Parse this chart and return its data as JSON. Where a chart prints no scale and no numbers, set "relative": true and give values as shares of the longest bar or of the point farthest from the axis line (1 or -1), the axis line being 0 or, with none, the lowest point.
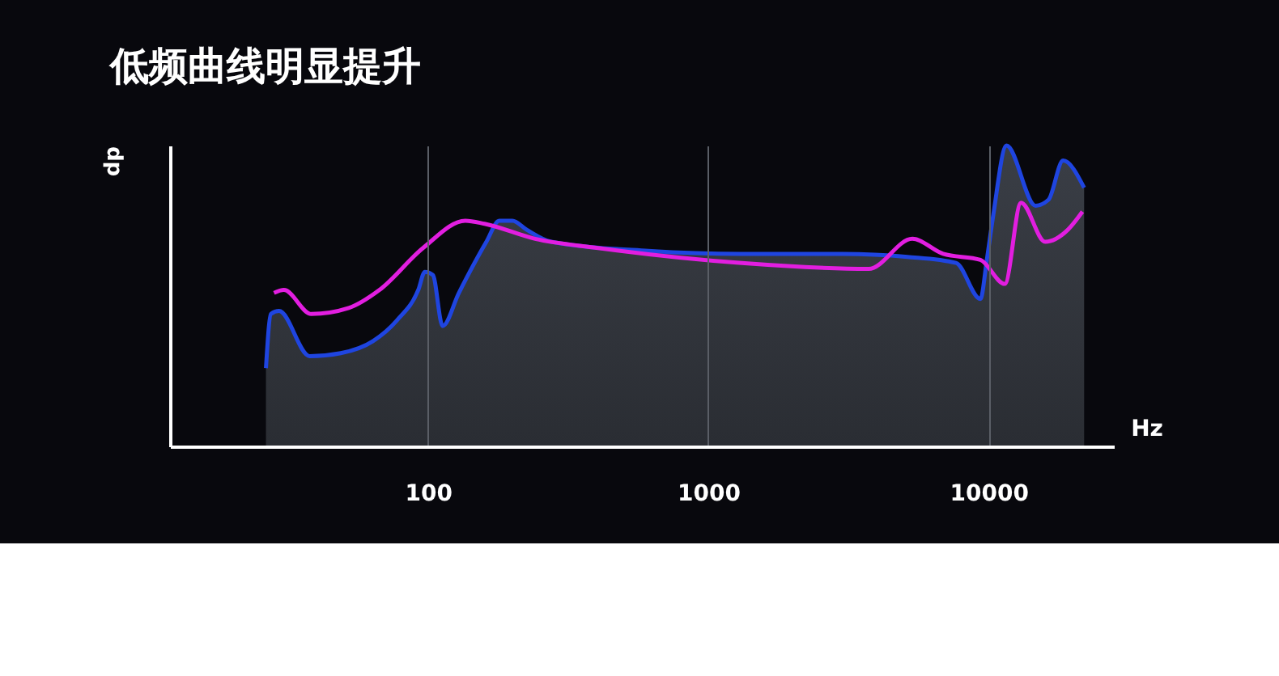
{
  "chart_data": {
    "type": "area",
    "title": "低频曲线明显提升",
    "xlabel": "Hz",
    "ylabel": "dp",
    "relative": true,
    "log": "x",
    "grid": "x",
    "tick_labels": "x",
    "xlim": [
      12,
      28000
    ],
    "xticks": [
      100,
      1000,
      10000
    ],
    "line_style": "solid",
    "marker": "none",
    "series": [
      {
        "color": "#1f45e0",
        "x": [
          26.4,
          27.5,
          29.4,
          37.8,
          48.8,
          63.6,
          77.6,
          92.3,
          97.4,
          104,
          112.7,
          128.8,
          161.5,
          179.5,
          200,
          225,
          275,
          611,
          1306,
          3020,
          5140,
          7656,
          9354,
          9860,
          10400,
          11590,
          14720,
          16370,
          18450,
          21930
        ],
        "values": [
          0.26,
          0.44,
          0.45,
          0.3,
          0.31,
          0.35,
          0.42,
          0.52,
          0.58,
          0.57,
          0.4,
          0.51,
          0.68,
          0.75,
          0.75,
          0.72,
          0.68,
          0.65,
          0.64,
          0.64,
          0.63,
          0.61,
          0.49,
          0.62,
          0.77,
          1.0,
          0.8,
          0.82,
          0.95,
          0.86
        ]
      },
      {
        "type": "line",
        "color": "#e21ee0",
        "x": [
          28.2,
          30.6,
          38.3,
          52.1,
          67.1,
          96.1,
          135.8,
          159,
          241,
          399,
          1288,
          3734,
          5346,
          6887,
          9354,
          11430,
          13060,
          15930,
          19190,
          21630
        ],
        "values": [
          0.51,
          0.52,
          0.44,
          0.46,
          0.52,
          0.66,
          0.75,
          0.74,
          0.69,
          0.66,
          0.61,
          0.59,
          0.69,
          0.64,
          0.62,
          0.54,
          0.81,
          0.68,
          0.72,
          0.78
        ]
      }
    ]
  }
}
